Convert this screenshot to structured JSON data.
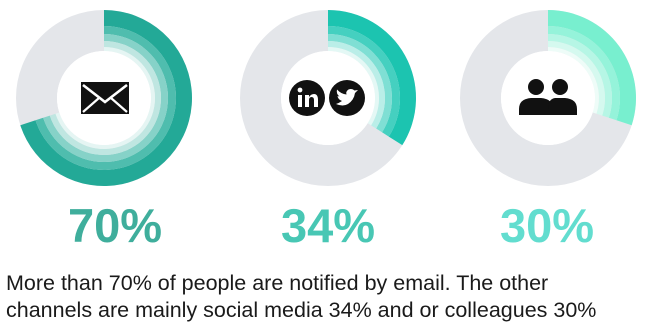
{
  "chart_data": {
    "type": "pie",
    "categories": [
      "Email",
      "Social media",
      "Colleagues"
    ],
    "values": [
      70,
      34,
      30
    ],
    "value_labels": [
      "70%",
      "34%",
      "30%"
    ],
    "unit": "%"
  },
  "icons": [
    "envelope-icon",
    "linkedin-icon",
    "twitter-icon",
    "people-icon"
  ],
  "colors": {
    "track": "#e4e6ea",
    "email": [
      "#23a997",
      "#4fbdae",
      "#86d2c8",
      "#bfe6e1",
      "#e5f5f3"
    ],
    "social": [
      "#1cc4b0",
      "#45d0c0",
      "#7fdfd4",
      "#baeee8",
      "#e4f8f5"
    ],
    "colleagues": [
      "#78efcf",
      "#95f3da",
      "#b6f6e5",
      "#d5f9ef",
      "#eefcf8"
    ],
    "label_colors": [
      "#3fae9c",
      "#48c7b4",
      "#62ddcf"
    ]
  },
  "caption": {
    "line1": "More than 70% of people are notified by email. The other",
    "line2": "channels are mainly social media 34% and or colleagues 30%"
  }
}
